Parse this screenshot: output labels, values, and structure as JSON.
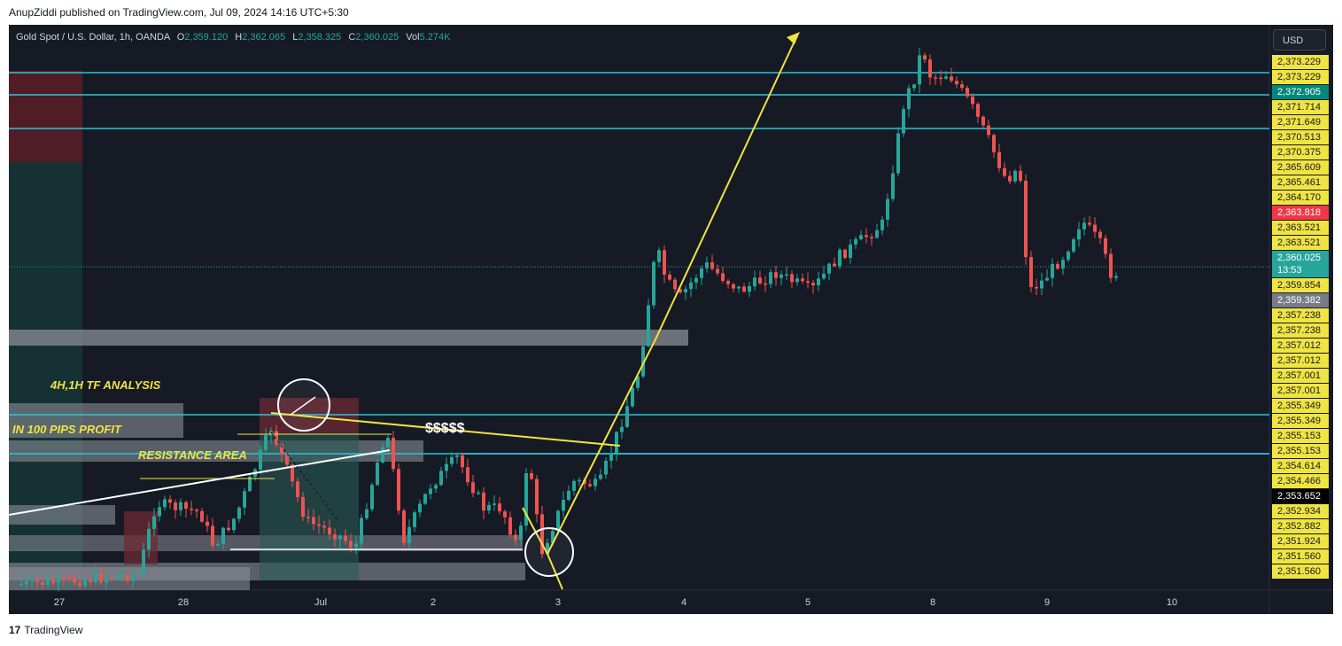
{
  "header": {
    "caption": "AnupZiddi published on TradingView.com, Jul 09, 2024 14:16 UTC+5:30"
  },
  "symbol": {
    "name": "Gold Spot / U.S. Dollar, 1h, OANDA",
    "open_label": "O",
    "open": "2,359.120",
    "high_label": "H",
    "high": "2,362.065",
    "low_label": "L",
    "low": "2,358.325",
    "close_label": "C",
    "close": "2,360.025",
    "vol_label": "Vol",
    "vol": "5.274K"
  },
  "currency_button": "USD",
  "annotations": {
    "analysis": "4H,1H TF ANALYSIS",
    "profit": "IN 100 PIPS PROFIT",
    "resistance": "RESISTANCE AREA",
    "dollars": "$$$$$"
  },
  "footer": {
    "brand": "TradingView",
    "brand_mark": "17"
  },
  "colors": {
    "up": "#26a69a",
    "down": "#ef5350",
    "hline": "#26c6da",
    "drawing": "#f0e442",
    "background": "#161a25"
  },
  "chart_data": {
    "type": "candlestick",
    "price_axis_labels": [
      {
        "text": "2,373.229",
        "style": "yellow"
      },
      {
        "text": "2,373.229",
        "style": "yellow"
      },
      {
        "text": "2,372.905",
        "style": "teal"
      },
      {
        "text": "2,371.714",
        "style": "yellow"
      },
      {
        "text": "2,371.649",
        "style": "yellow"
      },
      {
        "text": "2,370.513",
        "style": "yellow"
      },
      {
        "text": "2,370.375",
        "style": "yellow"
      },
      {
        "text": "2,365.609",
        "style": "yellow"
      },
      {
        "text": "2,365.461",
        "style": "yellow"
      },
      {
        "text": "2,364.170",
        "style": "yellow"
      },
      {
        "text": "2,363.818",
        "style": "red"
      },
      {
        "text": "2,363.521",
        "style": "yellow"
      },
      {
        "text": "2,363.521",
        "style": "yellow"
      },
      {
        "text": "2,360.025",
        "style": "current",
        "countdown": "13:53"
      },
      {
        "text": "2,359.854",
        "style": "yellow"
      },
      {
        "text": "2,359.382",
        "style": "gray"
      },
      {
        "text": "2,357.238",
        "style": "yellow"
      },
      {
        "text": "2,357.238",
        "style": "yellow"
      },
      {
        "text": "2,357.012",
        "style": "yellow"
      },
      {
        "text": "2,357.012",
        "style": "yellow"
      },
      {
        "text": "2,357.001",
        "style": "yellow"
      },
      {
        "text": "2,357.001",
        "style": "yellow"
      },
      {
        "text": "2,355.349",
        "style": "yellow"
      },
      {
        "text": "2,355.349",
        "style": "yellow"
      },
      {
        "text": "2,355.153",
        "style": "yellow"
      },
      {
        "text": "2,355.153",
        "style": "yellow"
      },
      {
        "text": "2,354.614",
        "style": "yellow"
      },
      {
        "text": "2,354.466",
        "style": "yellow"
      },
      {
        "text": "2,353.652",
        "style": "black"
      },
      {
        "text": "2,352.934",
        "style": "yellow"
      },
      {
        "text": "2,352.882",
        "style": "yellow"
      },
      {
        "text": "2,351.924",
        "style": "yellow"
      },
      {
        "text": "2,351.560",
        "style": "yellow"
      },
      {
        "text": "2,351.560",
        "style": "yellow"
      }
    ],
    "x_ticks": [
      "27",
      "28",
      "Jul",
      "2",
      "3",
      "4",
      "5",
      "8",
      "9",
      "10"
    ],
    "last_price": "2,360.025",
    "countdown": "13:53"
  }
}
